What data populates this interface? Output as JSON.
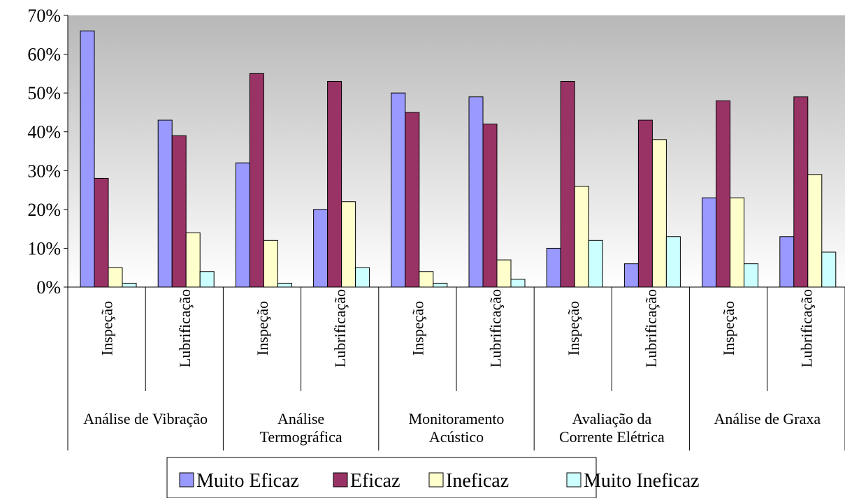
{
  "chart_data": {
    "type": "bar",
    "title": "",
    "xlabel": "",
    "ylabel": "",
    "ylim": [
      0,
      70
    ],
    "yticks": [
      "0%",
      "10%",
      "20%",
      "30%",
      "40%",
      "50%",
      "60%",
      "70%"
    ],
    "groups": [
      {
        "label_lines": [
          "Análise de Vibração"
        ],
        "subcategories": [
          "Inspeção",
          "Lubrificação"
        ]
      },
      {
        "label_lines": [
          "Análise",
          "Termográfica"
        ],
        "subcategories": [
          "Inspeção",
          "Lubrificação"
        ]
      },
      {
        "label_lines": [
          "Monitoramento",
          "Acústico"
        ],
        "subcategories": [
          "Inspeção",
          "Lubrificação"
        ]
      },
      {
        "label_lines": [
          "Avaliação da",
          "Corrente Elétrica"
        ],
        "subcategories": [
          "Inspeção",
          "Lubrificação"
        ]
      },
      {
        "label_lines": [
          "Análise de Graxa"
        ],
        "subcategories": [
          "Inspeção",
          "Lubrificação"
        ]
      }
    ],
    "series": [
      {
        "name": "Muito Eficaz",
        "color": "#9999ff",
        "values": [
          66,
          43,
          32,
          20,
          50,
          49,
          10,
          6,
          23,
          13
        ]
      },
      {
        "name": "Eficaz",
        "color": "#993366",
        "values": [
          28,
          39,
          55,
          53,
          45,
          42,
          53,
          43,
          48,
          49
        ]
      },
      {
        "name": "Ineficaz",
        "color": "#ffffcc",
        "values": [
          5,
          14,
          12,
          22,
          4,
          7,
          26,
          38,
          23,
          29
        ]
      },
      {
        "name": "Muito Ineficaz",
        "color": "#ccffff",
        "values": [
          1,
          4,
          1,
          5,
          1,
          2,
          12,
          13,
          6,
          9
        ]
      }
    ],
    "legend_position": "bottom",
    "grid": false,
    "background": "gradient-gray-to-white"
  }
}
